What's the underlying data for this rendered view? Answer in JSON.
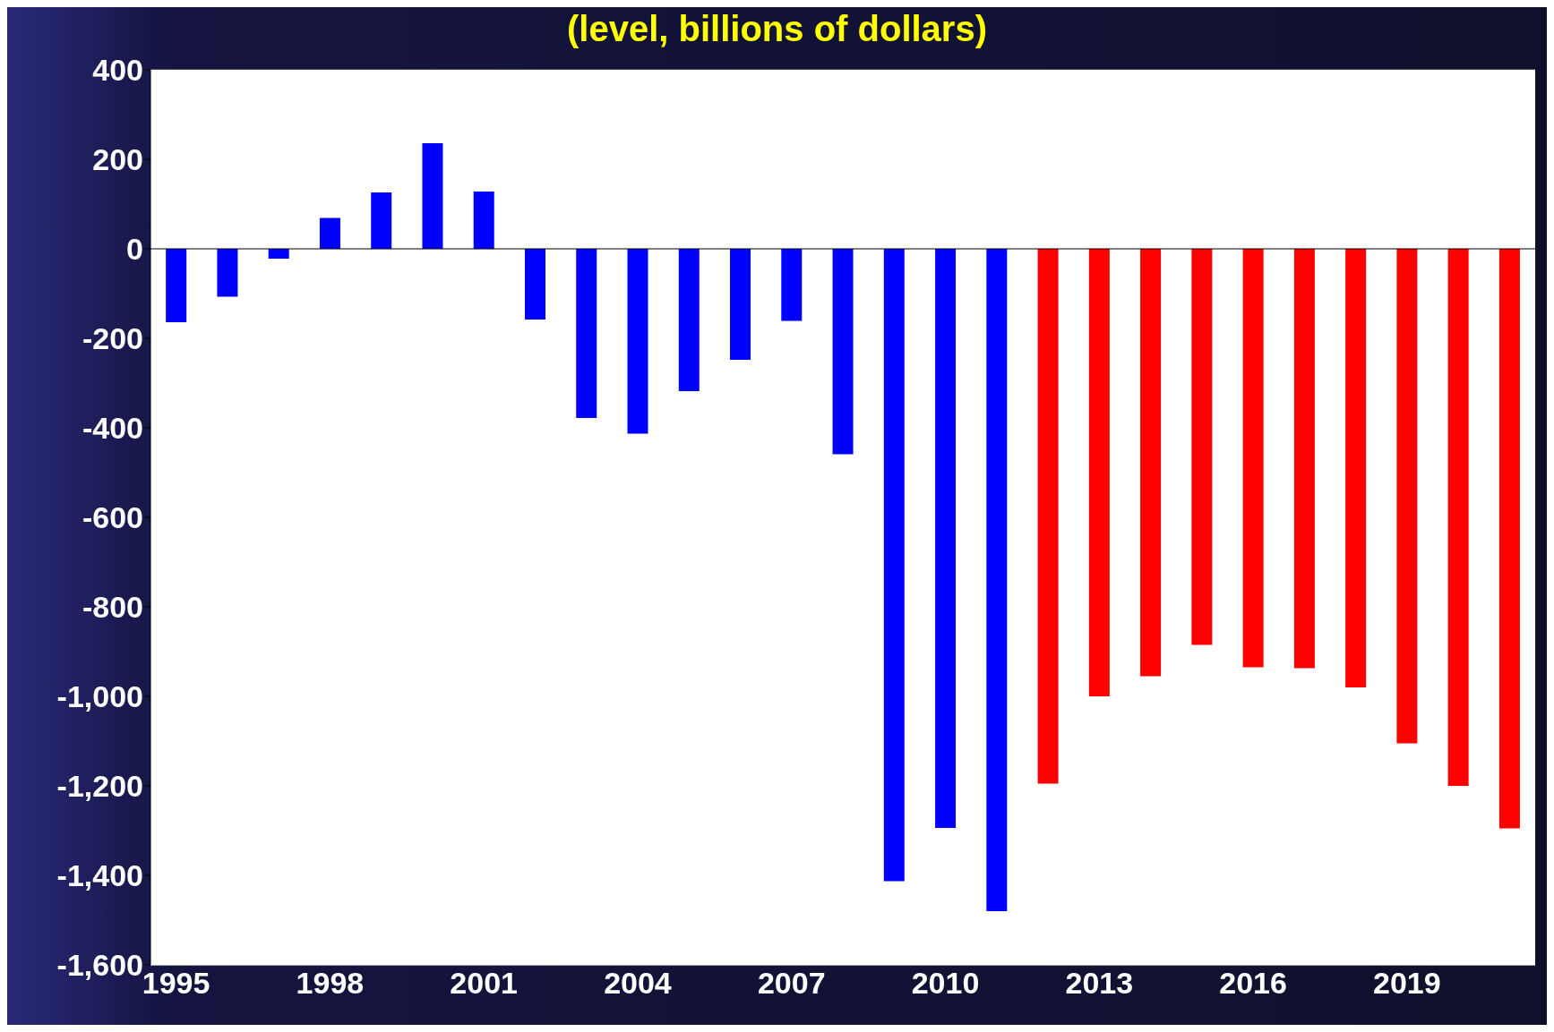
{
  "chart_data": {
    "type": "bar",
    "title": "(level, billions of dollars)",
    "categories": [
      "1995",
      null,
      null,
      "1998",
      null,
      null,
      "2001",
      null,
      null,
      "2004",
      null,
      null,
      "2007",
      null,
      null,
      "2010",
      null,
      null,
      "2013",
      null,
      null,
      "2016",
      null,
      null,
      "2019",
      null,
      null
    ],
    "values": [
      -164,
      -107,
      -22,
      69,
      126,
      236,
      128,
      -158,
      -378,
      -413,
      -318,
      -248,
      -161,
      -459,
      -1413,
      -1294,
      -1480,
      -1195,
      -1000,
      -955,
      -885,
      -935,
      -937,
      -980,
      -1105,
      -1200,
      -1295
    ],
    "colors": [
      "#0000ff",
      "#0000ff",
      "#0000ff",
      "#0000ff",
      "#0000ff",
      "#0000ff",
      "#0000ff",
      "#0000ff",
      "#0000ff",
      "#0000ff",
      "#0000ff",
      "#0000ff",
      "#0000ff",
      "#0000ff",
      "#0000ff",
      "#0000ff",
      "#0000ff",
      "#ff0000",
      "#ff0000",
      "#ff0000",
      "#ff0000",
      "#ff0000",
      "#ff0000",
      "#ff0000",
      "#ff0000",
      "#ff0000",
      "#ff0000"
    ],
    "ylim": [
      -1600,
      400
    ],
    "yticks": [
      {
        "value": -1600,
        "label": "-1,600"
      },
      {
        "value": -1400,
        "label": "-1,400"
      },
      {
        "value": -1200,
        "label": "-1,200"
      },
      {
        "value": -1000,
        "label": "-1,000"
      },
      {
        "value": -800,
        "label": "-800"
      },
      {
        "value": -600,
        "label": "-600"
      },
      {
        "value": -400,
        "label": "-400"
      },
      {
        "value": -200,
        "label": "-200"
      },
      {
        "value": 0,
        "label": "0"
      },
      {
        "value": 200,
        "label": "200"
      },
      {
        "value": 400,
        "label": "400"
      }
    ],
    "grid": "y"
  }
}
